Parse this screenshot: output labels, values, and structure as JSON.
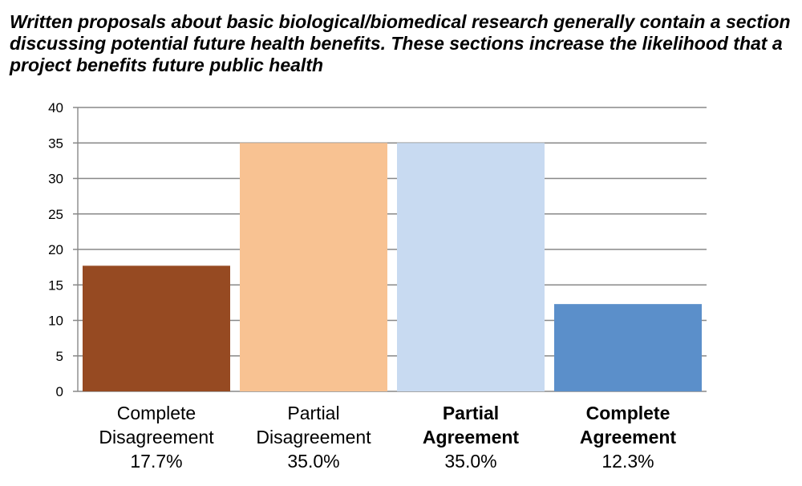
{
  "chart_data": {
    "type": "bar",
    "title": "Written proposals about basic biological/biomedical research generally contain a section discussing potential future health benefits. These sections increase the likelihood that a project benefits future public health",
    "categories": [
      "Complete Disagreement",
      "Partial Disagreement",
      "Partial Agreement",
      "Complete Agreement"
    ],
    "percent_labels": [
      "17.7%",
      "35.0%",
      "35.0%",
      "12.3%"
    ],
    "values": [
      17.7,
      35.0,
      35.0,
      12.3
    ],
    "bar_colors": [
      "#964A22",
      "#F8C292",
      "#C8DAF1",
      "#5B8FCA"
    ],
    "bold_categories": [
      false,
      false,
      true,
      true
    ],
    "ylim": [
      0,
      40
    ],
    "yticks": [
      0,
      5,
      10,
      15,
      20,
      25,
      30,
      35,
      40
    ],
    "xlabel": "",
    "ylabel": "",
    "grid": true,
    "legend": "none"
  }
}
